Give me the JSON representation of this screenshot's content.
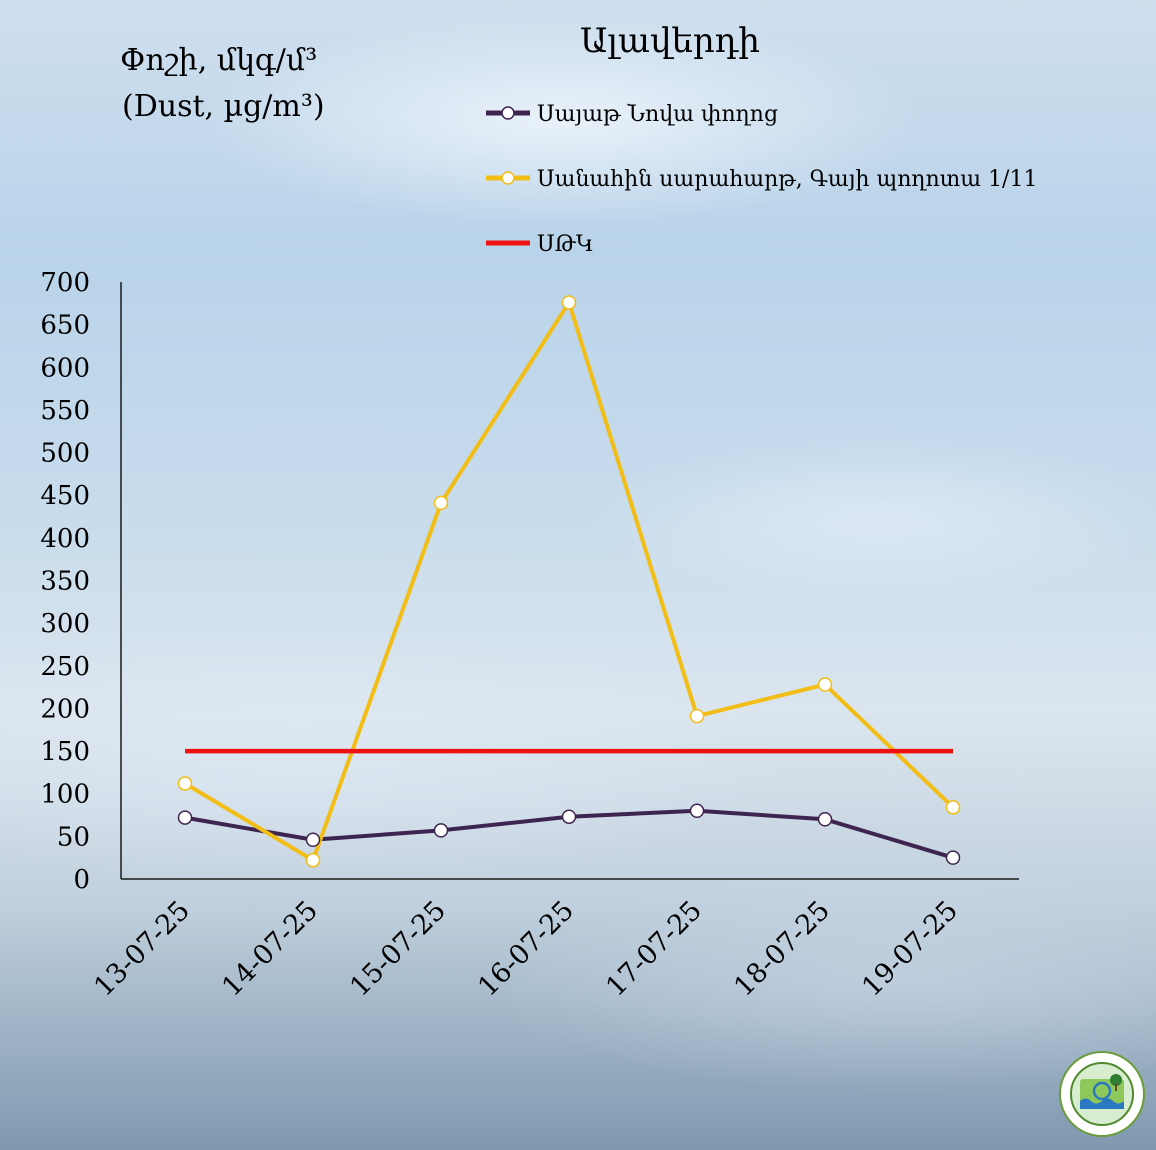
{
  "chart_data": {
    "type": "line",
    "title": "Ալավերդի",
    "ylabel": [
      "Փոշի, մկգ/մ³",
      "(Dust, µg/m³)"
    ],
    "xlabel": "",
    "categories": [
      "13-07-25",
      "14-07-25",
      "15-07-25",
      "16-07-25",
      "17-07-25",
      "18-07-25",
      "19-07-25"
    ],
    "ylim": [
      0,
      700
    ],
    "yticks": [
      0,
      50,
      100,
      150,
      200,
      250,
      300,
      350,
      400,
      450,
      500,
      550,
      600,
      650,
      700
    ],
    "grid": false,
    "legend_position": "top-right",
    "series": [
      {
        "name": "Սայաթ Նովա փողոց",
        "color": "#3d2550",
        "marker": "circle",
        "values": [
          72,
          46,
          57,
          73,
          80,
          70,
          25
        ]
      },
      {
        "name": "Սանահին սարահարթ, Գայի պողոտա 1/11",
        "color": "#f2bd14",
        "marker": "circle",
        "values": [
          112,
          22,
          441,
          676,
          191,
          228,
          84
        ]
      },
      {
        "name": "ՍԹԿ",
        "color": "#ee1111",
        "marker": "none",
        "values": [
          150,
          150,
          150,
          150,
          150,
          150,
          150
        ]
      }
    ]
  }
}
